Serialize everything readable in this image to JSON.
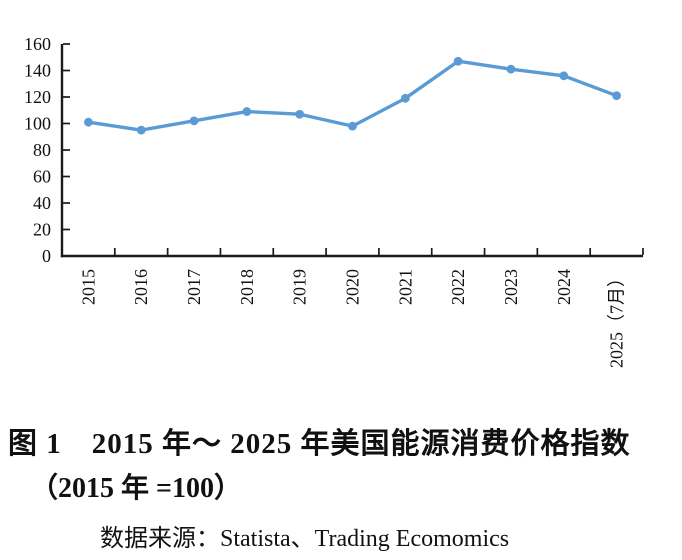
{
  "chart_data": {
    "type": "line",
    "title": "2015年～2025年美国能源消费价格指数（2015年=100）",
    "categories": [
      "2015",
      "2016",
      "2017",
      "2018",
      "2019",
      "2020",
      "2021",
      "2022",
      "2023",
      "2024",
      "2025（7月）"
    ],
    "values": [
      101,
      95,
      102,
      109,
      107,
      98,
      119,
      147,
      141,
      136,
      121
    ],
    "xlabel": "",
    "ylabel": "",
    "ylim": [
      0,
      160
    ],
    "yticks": [
      0,
      20,
      40,
      60,
      80,
      100,
      120,
      140,
      160
    ],
    "grid": false,
    "legend_position": "none",
    "marker": "circle",
    "line_color": "#5b9bd5",
    "axis_color": "#1a1a1a",
    "x_label_rotation": -90
  },
  "caption": {
    "line1": "图 1　2015 年～ 2025 年美国能源消费价格指数",
    "line2": "（2015 年 =100）"
  },
  "source": {
    "text": "数据来源：Statista、Trading Ecomomics"
  }
}
